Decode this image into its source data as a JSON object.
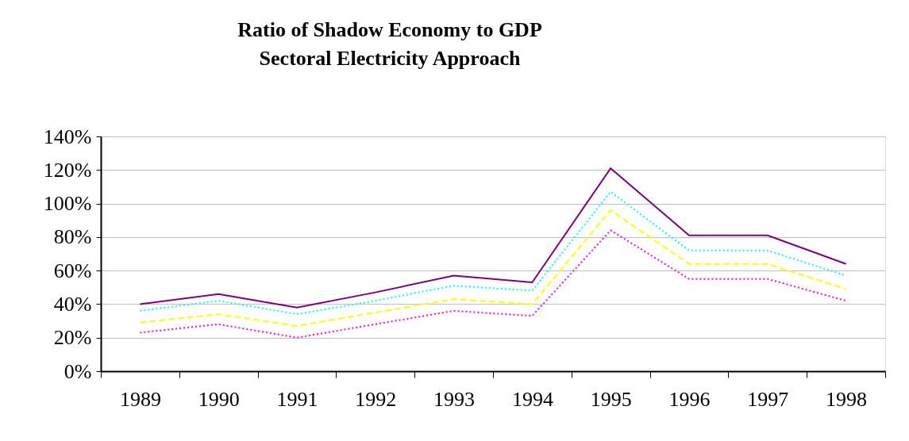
{
  "chart_data": {
    "type": "line",
    "title": [
      "Ratio of Shadow Economy to GDP",
      "Sectoral Electricity Approach"
    ],
    "categories": [
      "1989",
      "1990",
      "1991",
      "1992",
      "1993",
      "1994",
      "1995",
      "1996",
      "1997",
      "1998"
    ],
    "series": [
      {
        "color": "#800080",
        "line_style": "solid",
        "values": [
          40,
          46,
          38,
          47,
          57,
          53,
          121,
          81,
          81,
          64
        ]
      },
      {
        "color": "#00ffff",
        "line_style": "dotted",
        "values": [
          36,
          42,
          34,
          42,
          51,
          48,
          107,
          72,
          72,
          57
        ]
      },
      {
        "color": "#ffff00",
        "line_style": "dashed",
        "values": [
          29,
          34,
          27,
          35,
          43,
          40,
          96,
          64,
          64,
          49
        ]
      },
      {
        "color": "#ff00ff",
        "line_style": "dotted",
        "values": [
          23,
          28,
          20,
          28,
          36,
          33,
          84,
          55,
          55,
          42
        ]
      }
    ],
    "ylim": [
      0,
      140
    ],
    "yticks": [
      {
        "value": 0,
        "label": "0%"
      },
      {
        "value": 20,
        "label": "20%"
      },
      {
        "value": 40,
        "label": "40%"
      },
      {
        "value": 60,
        "label": "60%"
      },
      {
        "value": 80,
        "label": "80%"
      },
      {
        "value": 100,
        "label": "100%"
      },
      {
        "value": 120,
        "label": "120%"
      },
      {
        "value": 140,
        "label": "140%"
      }
    ],
    "grid": "y",
    "marker": "none"
  }
}
